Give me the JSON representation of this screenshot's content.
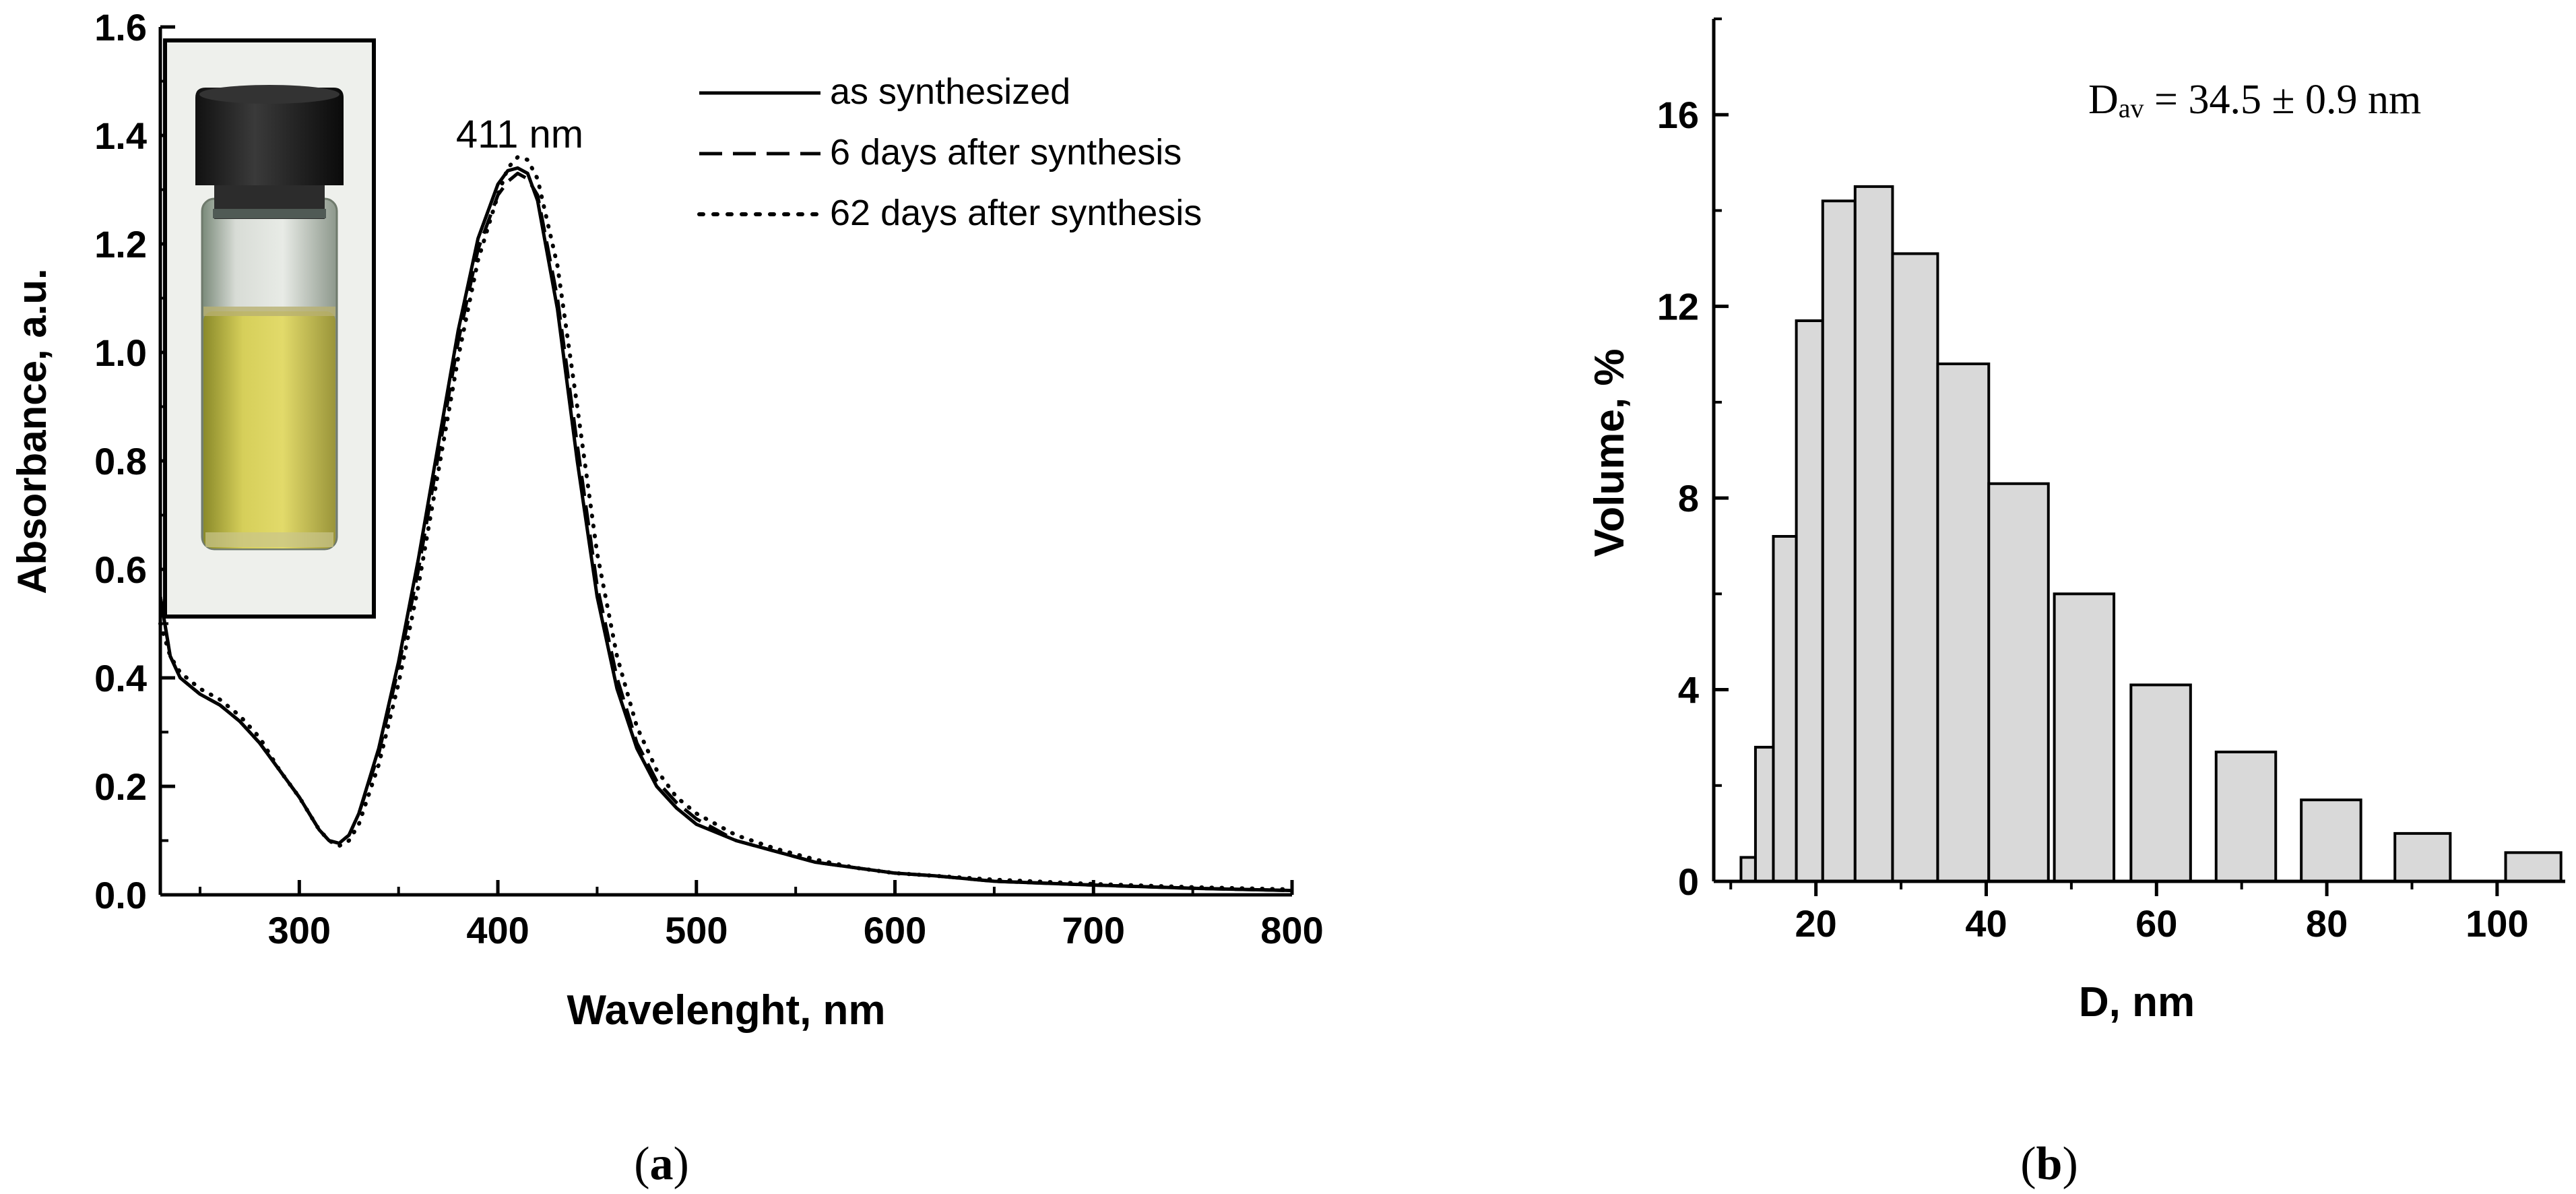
{
  "chart_data": [
    {
      "panel_label": "(a)",
      "panel_letter": "a",
      "type": "line",
      "title": "",
      "xlabel": "Wavelenght, nm",
      "ylabel": "Absorbance, a.u.",
      "xlim": [
        230,
        800
      ],
      "ylim": [
        0.0,
        1.6
      ],
      "xticks": [
        300,
        400,
        500,
        600,
        700,
        800
      ],
      "yticks": [
        0.0,
        0.2,
        0.4,
        0.6,
        0.8,
        1.0,
        1.2,
        1.4,
        1.6
      ],
      "xtick_labels": [
        "300",
        "400",
        "500",
        "600",
        "700",
        "800"
      ],
      "ytick_labels": [
        "0.0",
        "0.2",
        "0.4",
        "0.6",
        "0.8",
        "1.0",
        "1.2",
        "1.4",
        "1.6"
      ],
      "annotation": "411 nm",
      "annotation_at": [
        411,
        1.4
      ],
      "legend_position": "top-right",
      "inset": "photo of vial with yellow silver nanoparticle solution",
      "series": [
        {
          "name": "as synthesized",
          "style": "solid",
          "x": [
            230,
            235,
            240,
            250,
            260,
            270,
            280,
            290,
            300,
            310,
            315,
            320,
            325,
            330,
            340,
            350,
            360,
            370,
            380,
            390,
            400,
            405,
            410,
            415,
            420,
            430,
            440,
            450,
            460,
            470,
            480,
            490,
            500,
            520,
            540,
            560,
            580,
            600,
            620,
            650,
            700,
            750,
            800
          ],
          "y": [
            0.55,
            0.44,
            0.4,
            0.37,
            0.35,
            0.32,
            0.28,
            0.23,
            0.18,
            0.12,
            0.1,
            0.095,
            0.11,
            0.15,
            0.27,
            0.43,
            0.62,
            0.83,
            1.04,
            1.21,
            1.31,
            1.335,
            1.34,
            1.33,
            1.28,
            1.08,
            0.8,
            0.55,
            0.38,
            0.27,
            0.2,
            0.16,
            0.13,
            0.1,
            0.08,
            0.06,
            0.05,
            0.04,
            0.035,
            0.025,
            0.018,
            0.012,
            0.008
          ]
        },
        {
          "name": "6 days after synthesis",
          "style": "dashed",
          "x": [
            230,
            235,
            240,
            250,
            260,
            270,
            280,
            290,
            300,
            310,
            315,
            320,
            325,
            330,
            340,
            350,
            360,
            370,
            380,
            390,
            400,
            405,
            410,
            415,
            420,
            430,
            440,
            450,
            460,
            470,
            480,
            490,
            500,
            520,
            540,
            560,
            580,
            600,
            620,
            650,
            700,
            750,
            800
          ],
          "y": [
            0.55,
            0.44,
            0.4,
            0.37,
            0.35,
            0.32,
            0.28,
            0.23,
            0.18,
            0.12,
            0.1,
            0.095,
            0.11,
            0.15,
            0.26,
            0.42,
            0.6,
            0.81,
            1.02,
            1.19,
            1.29,
            1.315,
            1.33,
            1.32,
            1.29,
            1.1,
            0.83,
            0.57,
            0.4,
            0.28,
            0.21,
            0.17,
            0.14,
            0.1,
            0.08,
            0.06,
            0.05,
            0.04,
            0.035,
            0.025,
            0.018,
            0.012,
            0.008
          ]
        },
        {
          "name": "62 days after synthesis",
          "style": "dotted",
          "x": [
            230,
            235,
            240,
            250,
            260,
            270,
            280,
            290,
            300,
            310,
            315,
            320,
            325,
            330,
            340,
            350,
            360,
            370,
            380,
            390,
            400,
            405,
            410,
            415,
            420,
            430,
            440,
            450,
            460,
            470,
            480,
            490,
            500,
            520,
            540,
            560,
            580,
            600,
            620,
            650,
            700,
            750,
            800
          ],
          "y": [
            0.5,
            0.44,
            0.41,
            0.38,
            0.36,
            0.33,
            0.29,
            0.23,
            0.18,
            0.12,
            0.1,
            0.09,
            0.1,
            0.13,
            0.24,
            0.39,
            0.57,
            0.78,
            0.99,
            1.17,
            1.29,
            1.34,
            1.36,
            1.355,
            1.32,
            1.16,
            0.9,
            0.63,
            0.44,
            0.31,
            0.23,
            0.18,
            0.15,
            0.11,
            0.085,
            0.065,
            0.05,
            0.04,
            0.035,
            0.028,
            0.02,
            0.014,
            0.01
          ]
        }
      ]
    },
    {
      "panel_label": "(b)",
      "panel_letter": "b",
      "type": "bar",
      "title": "",
      "xlabel": "D, nm",
      "ylabel": "Volume, %",
      "xlim": [
        8,
        108
      ],
      "ylim": [
        0,
        18
      ],
      "xticks": [
        20,
        40,
        60,
        80,
        100
      ],
      "yticks": [
        0,
        4,
        8,
        12,
        16
      ],
      "xtick_labels": [
        "20",
        "40",
        "60",
        "80",
        "100"
      ],
      "ytick_labels": [
        "0",
        "4",
        "8",
        "12",
        "16"
      ],
      "annotation_main": "D",
      "annotation_sub": "av",
      "annotation_rest": " = 34.5 ± 0.9 nm",
      "bars": [
        {
          "x0": 11.2,
          "x1": 12.9,
          "value": 0.5
        },
        {
          "x0": 12.9,
          "x1": 15.0,
          "value": 2.8
        },
        {
          "x0": 15.0,
          "x1": 17.7,
          "value": 7.2
        },
        {
          "x0": 17.7,
          "x1": 20.8,
          "value": 11.7
        },
        {
          "x0": 20.8,
          "x1": 24.6,
          "value": 14.2
        },
        {
          "x0": 24.6,
          "x1": 29.0,
          "value": 14.5
        },
        {
          "x0": 29.0,
          "x1": 34.3,
          "value": 13.1
        },
        {
          "x0": 34.3,
          "x1": 40.3,
          "value": 10.8
        },
        {
          "x0": 40.3,
          "x1": 47.3,
          "value": 8.3
        },
        {
          "x0": 48.0,
          "x1": 55.0,
          "value": 6.0
        },
        {
          "x0": 57.0,
          "x1": 64.0,
          "value": 4.1
        },
        {
          "x0": 67.0,
          "x1": 74.0,
          "value": 2.7
        },
        {
          "x0": 77.0,
          "x1": 84.0,
          "value": 1.7
        },
        {
          "x0": 88.0,
          "x1": 94.5,
          "value": 1.0
        },
        {
          "x0": 101.0,
          "x1": 107.5,
          "value": 0.6
        }
      ]
    }
  ]
}
